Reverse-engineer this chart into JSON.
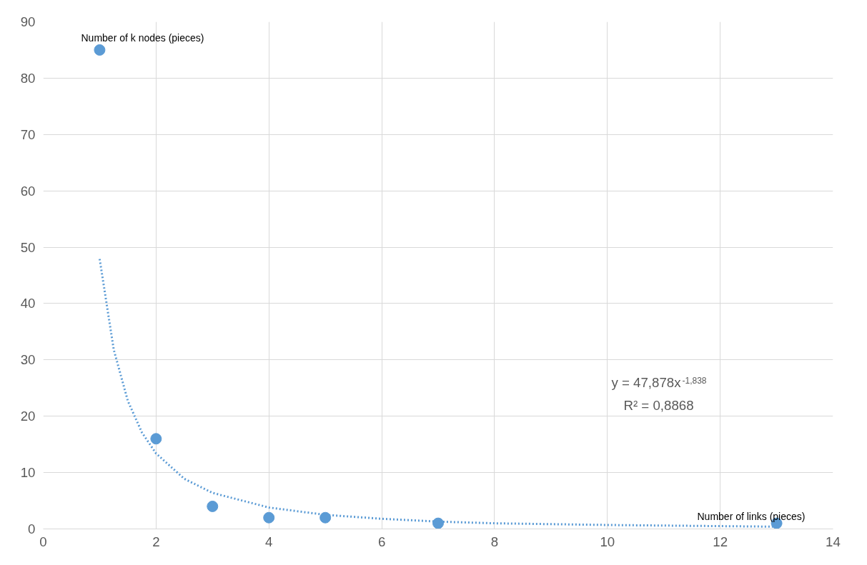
{
  "chart_data": {
    "type": "scatter",
    "xlabel": "Number of links (pieces)",
    "ylabel": "Number of k nodes (pieces)",
    "x": [
      1,
      2,
      3,
      4,
      5,
      7,
      13
    ],
    "series": [
      {
        "color": "#5b9bd5",
        "marker": "circle",
        "values": [
          85,
          16,
          4,
          2,
          2,
          1,
          1
        ]
      },
      {
        "type": "line",
        "color": "#5b9bd5",
        "line_style": "dotted",
        "x": [
          1,
          1.25,
          1.5,
          1.75,
          2,
          2.5,
          3,
          4,
          5,
          6,
          7,
          8,
          10,
          13
        ],
        "values": [
          47.9,
          31.8,
          22.7,
          17.1,
          13.4,
          8.9,
          6.4,
          3.8,
          2.5,
          1.8,
          1.3,
          1.0,
          0.7,
          0.4
        ]
      }
    ],
    "annotations": [
      "y = 47,878x$^{-1,838}$",
      "R² = 0,8868"
    ],
    "xlim": [
      0,
      14
    ],
    "xticks": [
      0,
      2,
      4,
      6,
      8,
      10,
      12,
      14
    ],
    "ylim": [
      0,
      90
    ],
    "yticks": [
      0,
      10,
      20,
      30,
      40,
      50,
      60,
      70,
      80,
      90
    ],
    "grid": true
  }
}
